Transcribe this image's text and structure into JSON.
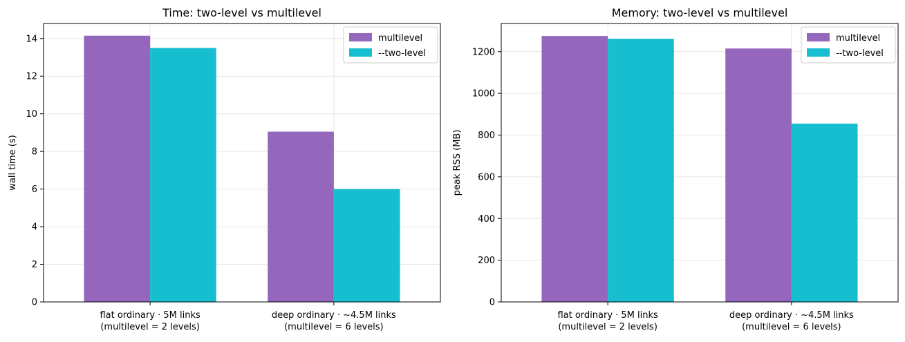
{
  "chart_data": [
    {
      "type": "bar",
      "title": "Time: two-level vs multilevel",
      "xlabel": "",
      "ylabel": "wall time (s)",
      "categories": [
        [
          "flat ordinary · 5M links",
          "(multilevel = 2 levels)"
        ],
        [
          "deep ordinary · ~4.5M links",
          "(multilevel = 6 levels)"
        ]
      ],
      "series": [
        {
          "name": "multilevel",
          "color": "#9467bd",
          "values": [
            14.15,
            9.05
          ]
        },
        {
          "name": "--two-level",
          "color": "#17becf",
          "values": [
            13.5,
            6.0
          ]
        }
      ],
      "ylim": [
        0,
        14.8
      ],
      "yticks": [
        0,
        2,
        4,
        6,
        8,
        10,
        12,
        14
      ],
      "grid": true,
      "legend": "top-right"
    },
    {
      "type": "bar",
      "title": "Memory: two-level vs multilevel",
      "xlabel": "",
      "ylabel": "peak RSS (MB)",
      "categories": [
        [
          "flat ordinary · 5M links",
          "(multilevel = 2 levels)"
        ],
        [
          "deep ordinary · ~4.5M links",
          "(multilevel = 6 levels)"
        ]
      ],
      "series": [
        {
          "name": "multilevel",
          "color": "#9467bd",
          "values": [
            1275,
            1215
          ]
        },
        {
          "name": "--two-level",
          "color": "#17becf",
          "values": [
            1262,
            855
          ]
        }
      ],
      "ylim": [
        0,
        1335
      ],
      "yticks": [
        0,
        200,
        400,
        600,
        800,
        1000,
        1200
      ],
      "grid": true,
      "legend": "top-right"
    }
  ]
}
